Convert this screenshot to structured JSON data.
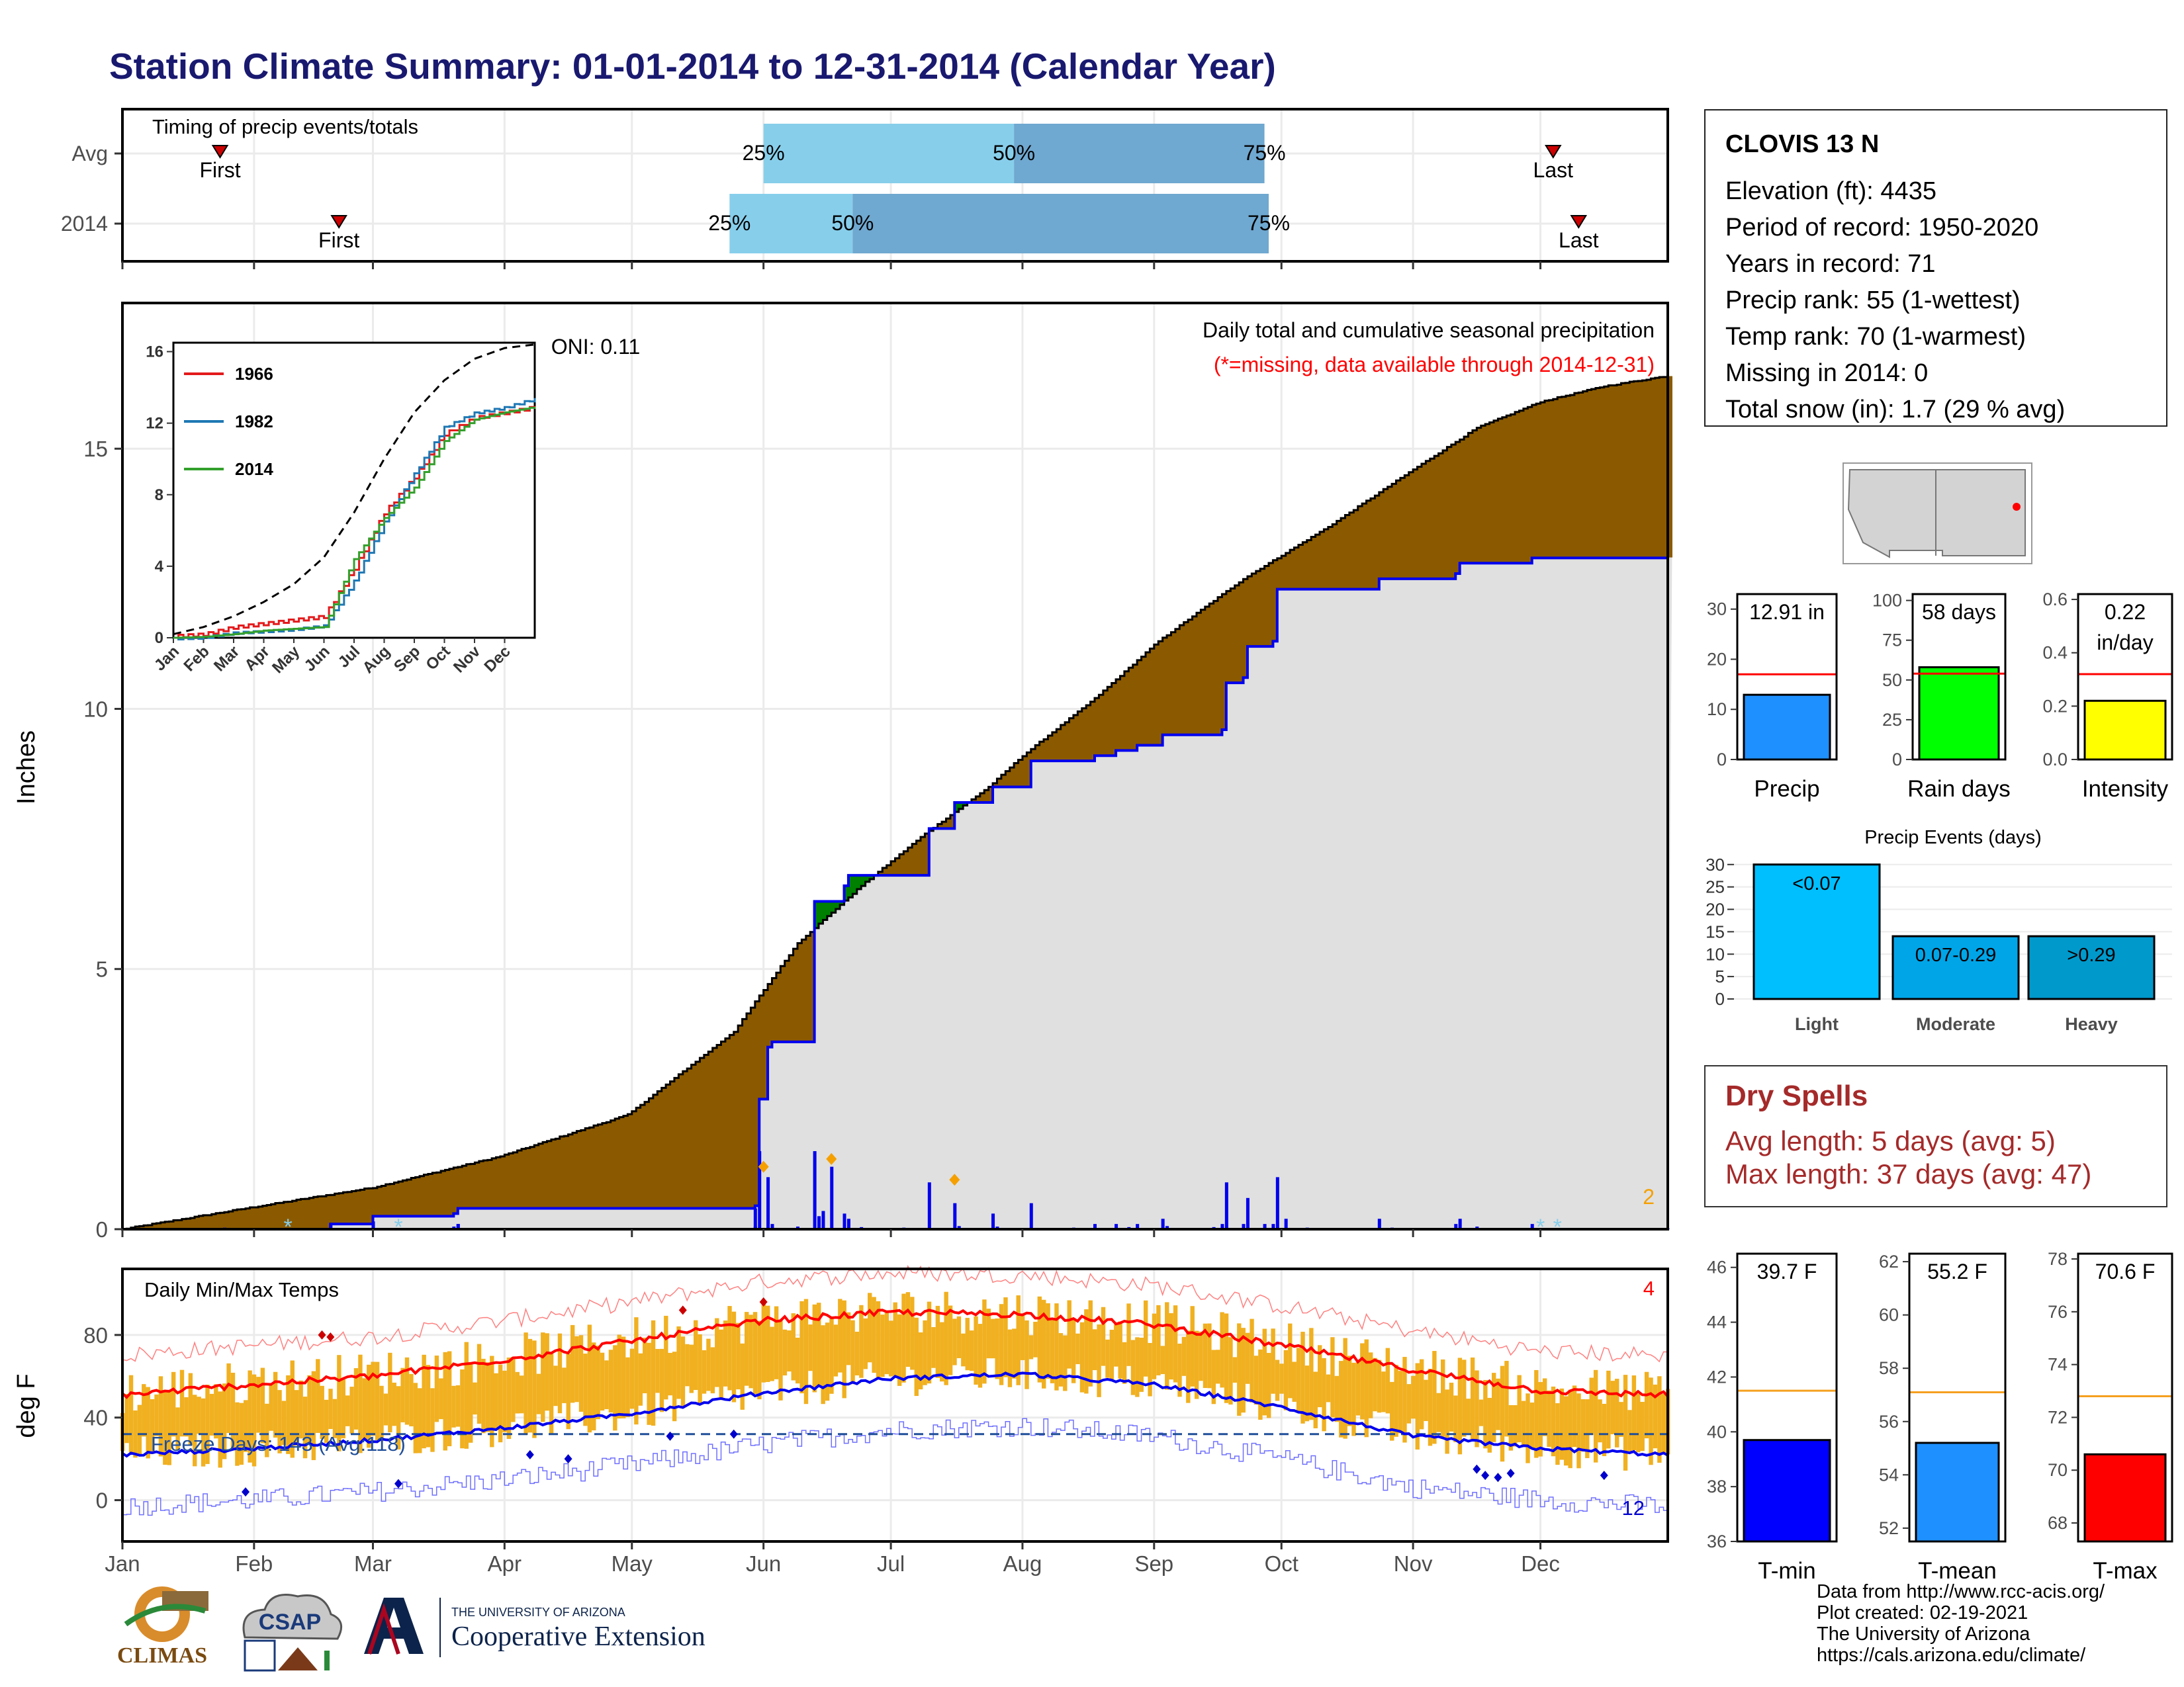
{
  "page": {
    "title": "Station Climate Summary: 01-01-2014 to 12-31-2014 (Calendar Year)"
  },
  "timing": {
    "title": "Timing of precip events/totals",
    "rows": [
      {
        "label": "Avg",
        "first_day": 24,
        "p25_day": 152,
        "p50_day": 211,
        "p75_day": 270,
        "last_day": 338
      },
      {
        "label": "2014",
        "first_day": 52,
        "p25_day": 144,
        "p50_day": 173,
        "p75_day": 271,
        "last_day": 344
      }
    ],
    "first_label": "First",
    "last_label": "Last",
    "p25_label": "25%",
    "p50_label": "50%",
    "p75_label": "75%",
    "colors": {
      "light": "#87ceeb",
      "dark": "#6fa8d0",
      "marker": "#cc0000"
    }
  },
  "main": {
    "ylabel": "Inches",
    "yticks": [
      0,
      5,
      10,
      15
    ],
    "oni": "ONI: 0.11",
    "subtitle": "Daily total and cumulative seasonal precipitation",
    "missing_note": "(*=missing, data available through 2014-12-31)",
    "corner_count": "2",
    "colors": {
      "avg_area": "#8b5a00",
      "above_area": "#008000",
      "obs_area": "#e0e0e0",
      "obs_line": "#0000ee",
      "daily_bar": "#0000ee"
    }
  },
  "inset": {
    "yticks": [
      0,
      4,
      8,
      12,
      16
    ],
    "months": [
      "Jan",
      "Feb",
      "Mar",
      "Apr",
      "May",
      "Jun",
      "Jul",
      "Aug",
      "Sep",
      "Oct",
      "Nov",
      "Dec"
    ],
    "legend": [
      {
        "name": "1966",
        "color": "#e31a1c"
      },
      {
        "name": "1982",
        "color": "#1f78b4"
      },
      {
        "name": "2014",
        "color": "#33a02c"
      }
    ]
  },
  "temps": {
    "title": "Daily Min/Max Temps",
    "ylabel": "deg F",
    "yticks": [
      0,
      40,
      80
    ],
    "freeze_label": "Freeze Days: 143 (Avg:118)",
    "count_max": "4",
    "count_min": "12",
    "colors": {
      "bar": "#f0b020",
      "avg_max": "#ff0000",
      "avg_min": "#0000ee",
      "rec_max": "#ff8080",
      "rec_min": "#7070ff",
      "freeze": "#1f4e99"
    }
  },
  "x_months": [
    "Jan",
    "Feb",
    "Mar",
    "Apr",
    "May",
    "Jun",
    "Jul",
    "Aug",
    "Sep",
    "Oct",
    "Nov",
    "Dec"
  ],
  "station": {
    "name": "CLOVIS 13 N",
    "lines": [
      "Elevation (ft): 4435",
      "Period of record: 1950-2020",
      "Years in record: 71",
      "Precip rank: 55 (1-wettest)",
      "Temp rank: 70 (1-warmest)",
      "Missing in 2014: 0",
      "Total snow (in): 1.7 (29 % avg)"
    ]
  },
  "mini_bars": [
    {
      "label": "Precip",
      "value": 12.91,
      "value_text": "12.91 in",
      "value_text2": "",
      "avg": 17,
      "ylim": [
        0,
        33
      ],
      "yticks": [
        0,
        10,
        20,
        30
      ],
      "color": "#1e90ff"
    },
    {
      "label": "Rain days",
      "value": 58,
      "value_text": "58 days",
      "value_text2": "",
      "avg": 54,
      "ylim": [
        0,
        104
      ],
      "yticks": [
        0,
        25,
        50,
        75,
        100
      ],
      "color": "#00ff00"
    },
    {
      "label": "Intensity",
      "value": 0.22,
      "value_text": "0.22",
      "value_text2": "in/day",
      "avg": 0.32,
      "ylim": [
        0,
        0.62
      ],
      "yticks": [
        0.0,
        0.2,
        0.4,
        0.6
      ],
      "color": "#ffff00"
    }
  ],
  "events": {
    "title": "Precip Events (days)",
    "categories": [
      "Light",
      "Moderate",
      "Heavy"
    ],
    "labels": [
      "<0.07",
      "0.07-0.29",
      ">0.29"
    ],
    "values": [
      30,
      14,
      14
    ],
    "yticks": [
      0,
      5,
      10,
      15,
      20,
      25,
      30
    ],
    "colors": [
      "#00bfff",
      "#00a5e8",
      "#0099cc"
    ]
  },
  "dry_spells": {
    "title": "Dry Spells",
    "avg_line": "Avg length: 5 days (avg: 5)",
    "max_line": "Max length: 37 days (avg: 47)"
  },
  "temp_bars": [
    {
      "label": "T-min",
      "value": 39.7,
      "value_text": "39.7 F",
      "avg": 41.5,
      "ylim": [
        36,
        46.5
      ],
      "yticks": [
        36,
        38,
        40,
        42,
        44,
        46
      ],
      "color": "#0000ff"
    },
    {
      "label": "T-mean",
      "value": 55.2,
      "value_text": "55.2 F",
      "avg": 57.1,
      "ylim": [
        51.5,
        62.3
      ],
      "yticks": [
        52,
        54,
        56,
        58,
        60,
        62
      ],
      "color": "#1e90ff"
    },
    {
      "label": "T-max",
      "value": 70.6,
      "value_text": "70.6 F",
      "avg": 72.8,
      "ylim": [
        67.3,
        78.2
      ],
      "yticks": [
        68,
        70,
        72,
        74,
        76,
        78
      ],
      "color": "#ff0000"
    }
  ],
  "credits": [
    "Data from http://www.rcc-acis.org/",
    "Plot created: 02-19-2021",
    "The University of Arizona",
    "https://cals.arizona.edu/climate/"
  ],
  "logos": {
    "climas": "CLIMAS",
    "csap": "CSAP",
    "ua_small": "THE UNIVERSITY OF ARIZONA",
    "ua_big": "Cooperative Extension"
  },
  "chart_data": [
    {
      "type": "area",
      "title": "Daily total and cumulative seasonal precipitation",
      "ylabel": "Inches",
      "ylim": [
        0,
        17.8
      ],
      "x_unit": "day of year",
      "series": [
        {
          "name": "",
          "x": [
            1,
            30,
            60,
            90,
            120,
            145,
            152,
            160,
            175,
            190,
            205,
            213,
            230,
            245,
            265,
            285,
            305,
            320,
            335,
            350,
            365
          ],
          "values": [
            0,
            0.4,
            0.8,
            1.4,
            2.2,
            3.8,
            4.6,
            5.5,
            6.6,
            7.6,
            8.5,
            9.1,
            10.2,
            11.3,
            12.5,
            13.5,
            14.6,
            15.4,
            15.9,
            16.2,
            16.4
          ]
        },
        {
          "name": "",
          "x": [
            1,
            50,
            60,
            79,
            80,
            150,
            151,
            153,
            154,
            163,
            164,
            171,
            172,
            190,
            191,
            196,
            197,
            205,
            206,
            210,
            215,
            230,
            235,
            240,
            246,
            260,
            261,
            265,
            266,
            272,
            273,
            296,
            297,
            315,
            316,
            332,
            333,
            365
          ],
          "values": [
            0,
            0.1,
            0.25,
            0.3,
            0.4,
            0.45,
            2.5,
            3.5,
            3.6,
            3.6,
            6.3,
            6.6,
            6.8,
            6.8,
            7.7,
            7.7,
            8.2,
            8.2,
            8.5,
            8.5,
            9.0,
            9.1,
            9.2,
            9.3,
            9.5,
            9.6,
            10.5,
            10.6,
            11.2,
            11.3,
            12.3,
            12.3,
            12.5,
            12.6,
            12.8,
            12.8,
            12.9,
            12.91
          ]
        }
      ]
    },
    {
      "type": "line",
      "title": "",
      "x": [
        "Jan",
        "Feb",
        "Mar",
        "Apr",
        "May",
        "Jun",
        "Jul",
        "Aug",
        "Sep",
        "Oct",
        "Nov",
        "Dec"
      ],
      "ylim": [
        0,
        16
      ],
      "series": [
        {
          "name": "1966",
          "values": [
            0.1,
            0.5,
            0.7,
            0.9,
            1.1,
            3.8,
            6.9,
            8.9,
            11.3,
            12.2,
            12.5,
            12.8
          ]
        },
        {
          "name": "1982",
          "values": [
            0.05,
            0.3,
            0.4,
            0.5,
            0.7,
            3.2,
            6.5,
            9.2,
            11.8,
            12.6,
            12.9,
            13.4
          ]
        },
        {
          "name": "2014",
          "values": [
            0.05,
            0.2,
            0.4,
            0.5,
            0.6,
            4.4,
            6.7,
            8.4,
            11.0,
            12.2,
            12.6,
            12.91
          ]
        }
      ]
    },
    {
      "type": "line",
      "title": "Daily Min/Max Temps",
      "ylabel": "deg F",
      "ylim": [
        -20,
        112
      ],
      "x_unit": "day of year",
      "series": [
        {
          "name": "",
          "x": [
            1,
            32,
            60,
            91,
            121,
            152,
            182,
            213,
            244,
            274,
            305,
            335,
            365
          ],
          "values": [
            51,
            56,
            60,
            68,
            77,
            87,
            91,
            90,
            85,
            75,
            63,
            53,
            51
          ]
        },
        {
          "name": "",
          "x": [
            1,
            32,
            60,
            91,
            121,
            152,
            182,
            213,
            244,
            274,
            305,
            335,
            365
          ],
          "values": [
            22,
            25,
            29,
            35,
            42,
            52,
            59,
            61,
            56,
            45,
            31,
            25,
            22
          ]
        }
      ]
    },
    {
      "type": "bar",
      "title": "Precip Events (days)",
      "categories": [
        "Light",
        "Moderate",
        "Heavy"
      ],
      "values": [
        30,
        14,
        14
      ]
    },
    {
      "type": "bar",
      "categories": [
        "Precip",
        "Rain days",
        "Intensity"
      ],
      "values": [
        12.91,
        58,
        0.22
      ]
    },
    {
      "type": "bar",
      "categories": [
        "T-min",
        "T-mean",
        "T-max"
      ],
      "values": [
        39.7,
        55.2,
        70.6
      ]
    }
  ]
}
